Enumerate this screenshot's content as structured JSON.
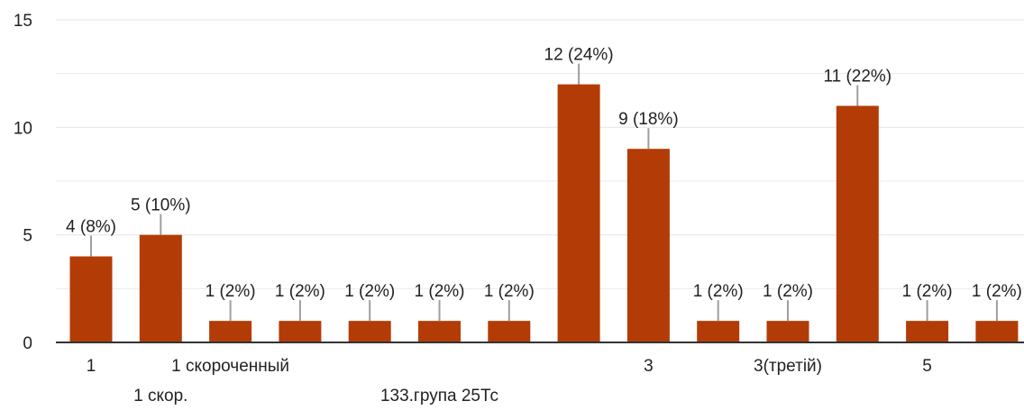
{
  "colors": {
    "bar": "#b33c06",
    "grid": "#ebebeb",
    "axis": "#333333",
    "label_line": "#9e9e9e",
    "text": "#222222"
  },
  "chart_data": {
    "type": "bar",
    "categories": [
      "1",
      "1 скор.",
      "1 скороченный",
      "",
      "",
      "133.група 25Тс",
      "",
      "",
      "3",
      "",
      "3(третій)",
      "",
      "5",
      ""
    ],
    "values": [
      4,
      5,
      1,
      1,
      1,
      1,
      1,
      12,
      9,
      1,
      1,
      11,
      1,
      1
    ],
    "data_labels": [
      "4 (8%)",
      "5 (10%)",
      "1 (2%)",
      "1 (2%)",
      "1 (2%)",
      "1 (2%)",
      "1 (2%)",
      "12 (24%)",
      "9 (18%)",
      "1 (2%)",
      "1 (2%)",
      "11 (22%)",
      "1 (2%)",
      "1 (2%)"
    ],
    "y_ticks": [
      "0",
      "5",
      "10",
      "15"
    ],
    "ylim": [
      0,
      15
    ],
    "grid": true,
    "title": "",
    "xlabel": "",
    "ylabel": ""
  }
}
